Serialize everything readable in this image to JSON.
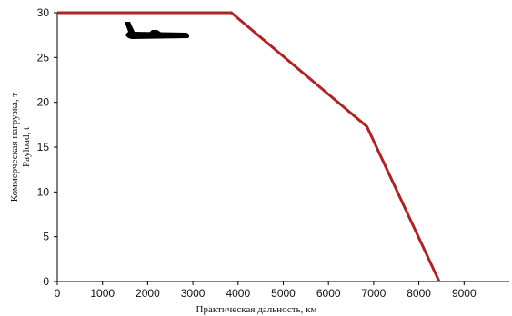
{
  "chart_data": {
    "type": "line",
    "title": "",
    "xlabel": "Практическая дальность, км",
    "ylabel_ru": "Коммерческая нагрузка, т",
    "ylabel_en": "Payload, t",
    "xlim": [
      0,
      10000
    ],
    "ylim": [
      0,
      30
    ],
    "x_ticks": [
      0,
      1000,
      2000,
      3000,
      4000,
      5000,
      6000,
      7000,
      8000,
      9000
    ],
    "y_ticks": [
      0,
      5,
      10,
      15,
      20,
      25,
      30
    ],
    "grid": false,
    "series": [
      {
        "x": [
          0,
          3850,
          6850,
          8450
        ],
        "y": [
          30,
          30,
          17.3,
          0
        ],
        "color": "#b22222"
      }
    ],
    "icon": "airplane-icon"
  }
}
